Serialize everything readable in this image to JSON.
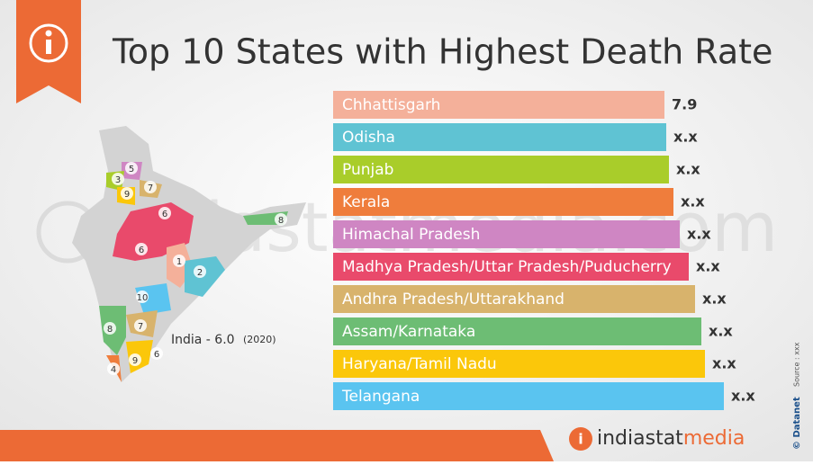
{
  "header": {
    "title": "Top 10 States with Highest Death Rate"
  },
  "rows": [
    {
      "label": "Chhattisgarh",
      "value": "7.9",
      "color": "#f4b09a"
    },
    {
      "label": "Odisha",
      "value": "x.x",
      "color": "#5fc3d3"
    },
    {
      "label": "Punjab",
      "value": "x.x",
      "color": "#a9cd2a"
    },
    {
      "label": "Kerala",
      "value": "x.x",
      "color": "#ef7d3c"
    },
    {
      "label": "Himachal Pradesh",
      "value": "x.x",
      "color": "#cf86c3"
    },
    {
      "label": "Madhya Pradesh/Uttar Pradesh/Puducherry",
      "value": "x.x",
      "color": "#e94a6b"
    },
    {
      "label": "Andhra Pradesh/Uttarakhand",
      "value": "x.x",
      "color": "#d8b36c"
    },
    {
      "label": "Assam/Karnataka",
      "value": "x.x",
      "color": "#6dbd74"
    },
    {
      "label": "Haryana/Tamil Nadu",
      "value": "x.x",
      "color": "#fbc70a"
    },
    {
      "label": "Telangana",
      "value": "x.x",
      "color": "#5ac4f0"
    }
  ],
  "map": {
    "labels": [
      "5",
      "3",
      "9",
      "7",
      "6",
      "6",
      "8",
      "1",
      "2",
      "10",
      "8",
      "7",
      "9",
      "6",
      "4"
    ],
    "india_label": "India - 6.0",
    "year": "(2020)"
  },
  "watermark": "indiastatmedia.com",
  "footer": {
    "logo_main": "indiastat",
    "logo_accent": "media",
    "copyright": "© Datanet",
    "source": "Source : xxx"
  }
}
